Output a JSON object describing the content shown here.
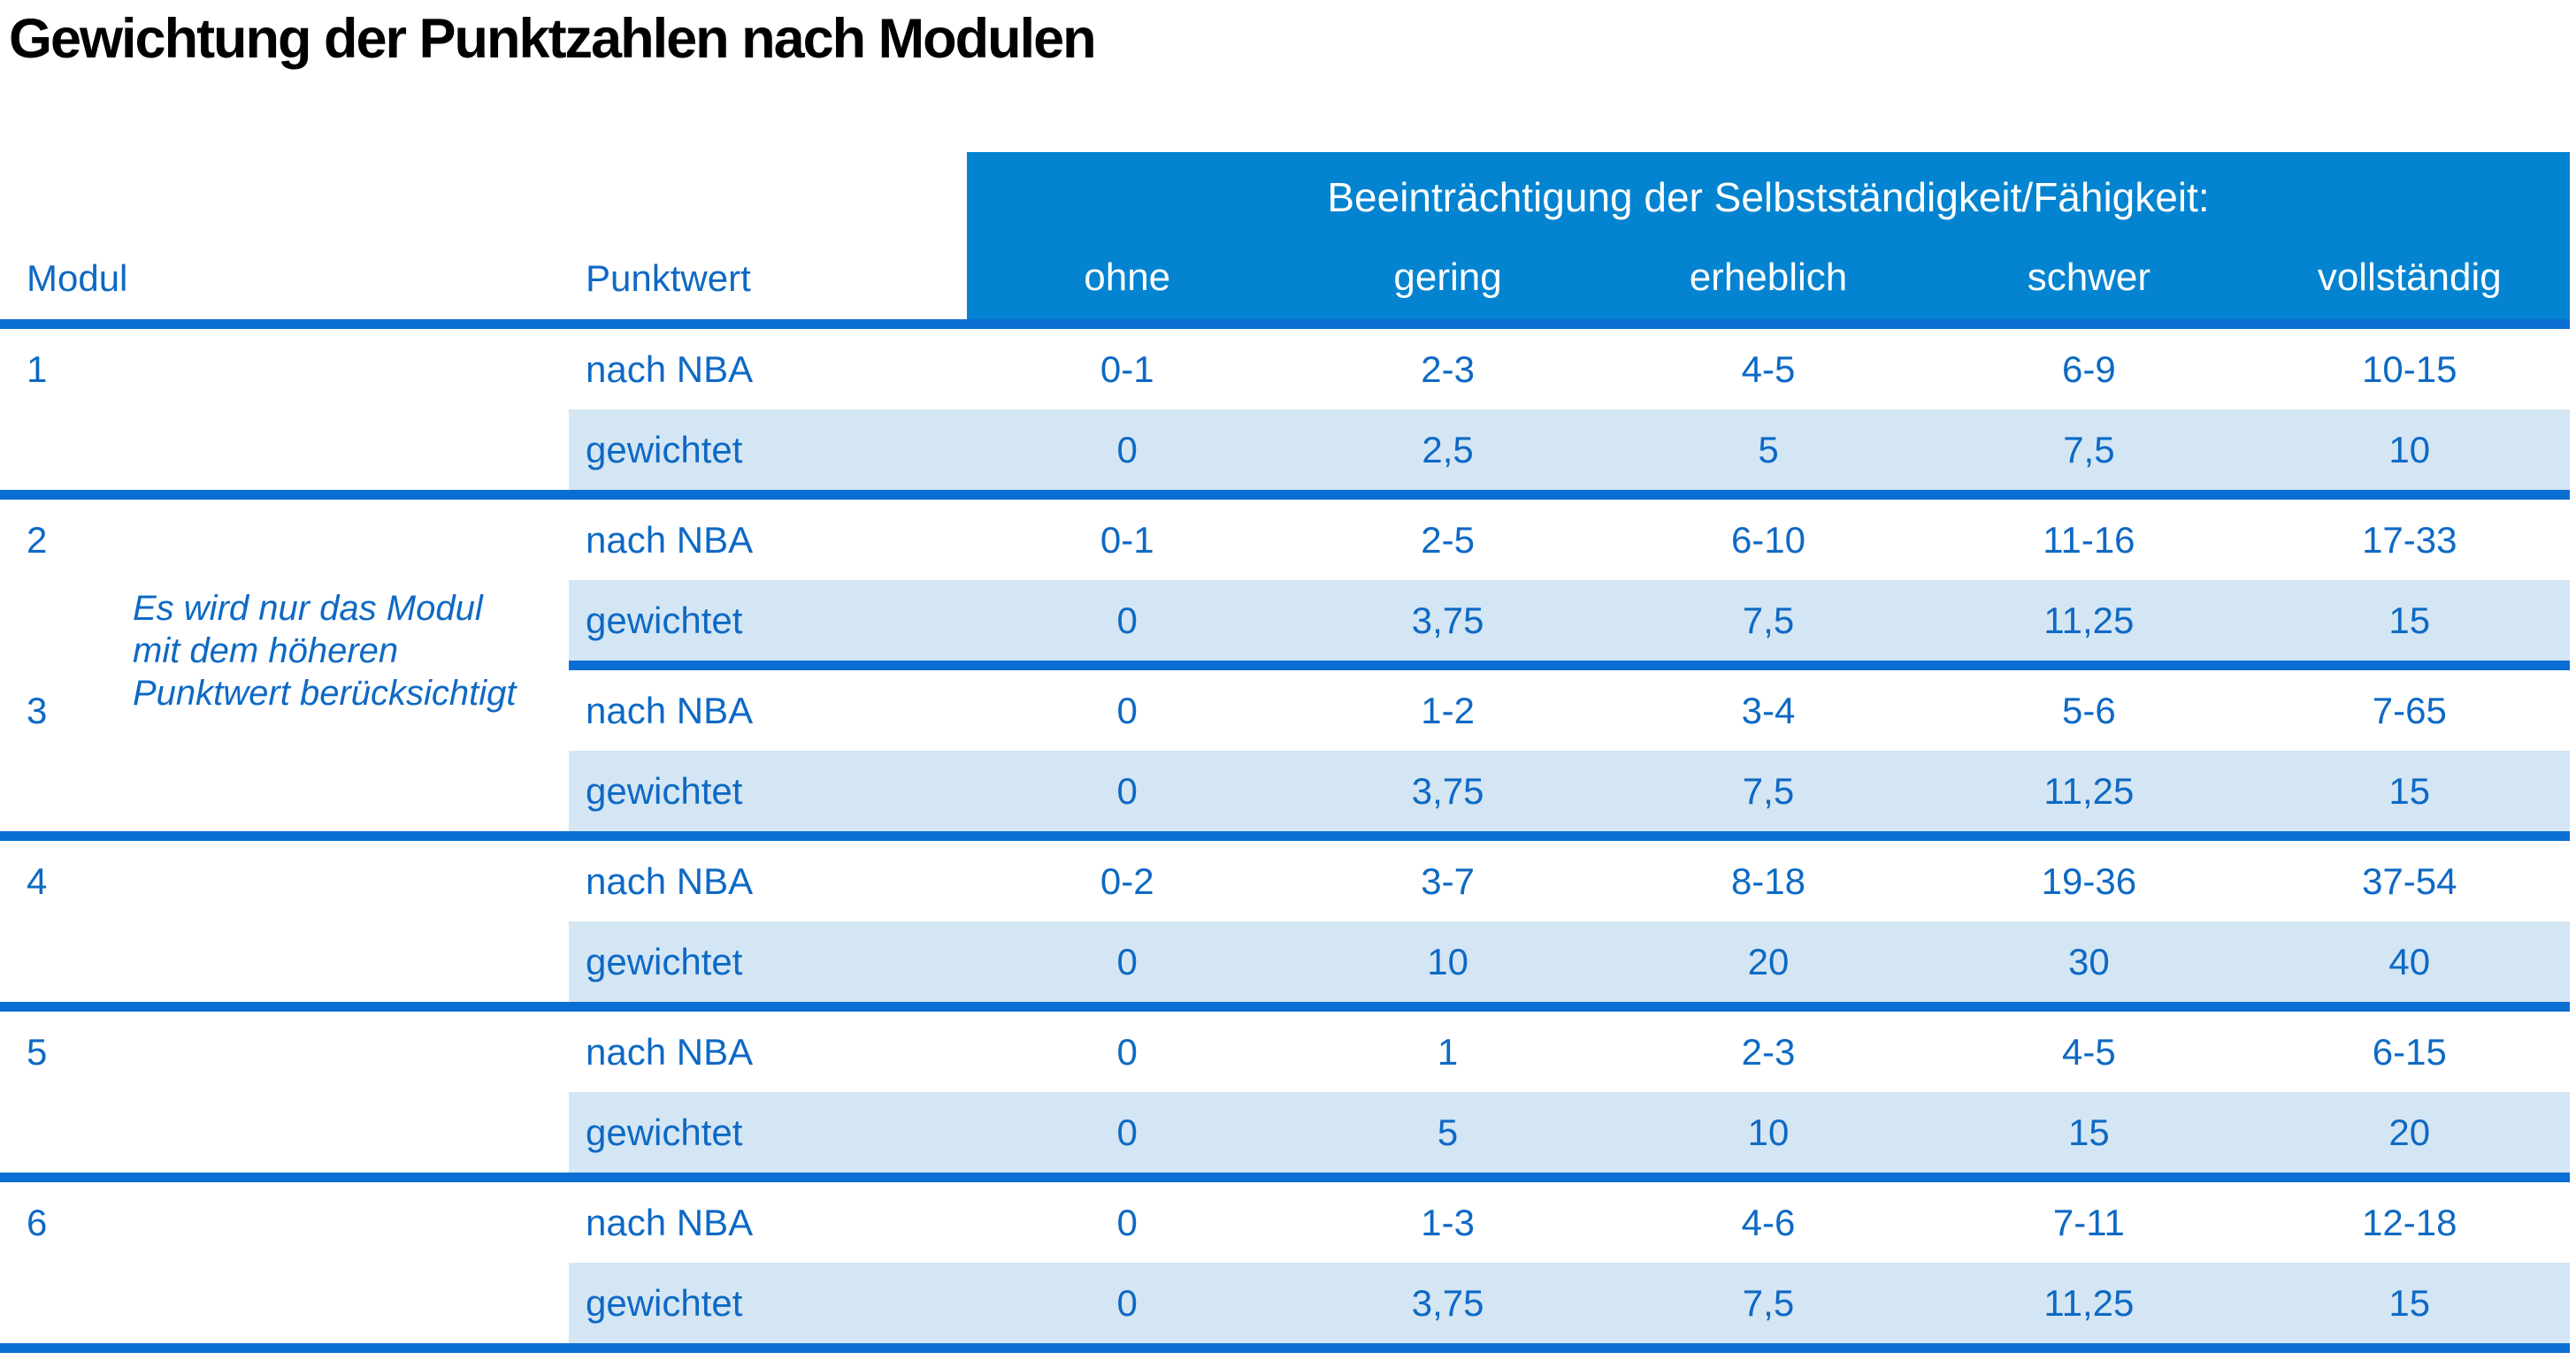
{
  "title": "Gewichtung der Punktzahlen nach Modulen",
  "table": {
    "col_headers": {
      "modul": "Modul",
      "punktwert": "Punktwert"
    },
    "impairment_header": "Beeinträchtigung der Selbstständigkeit/Fähigkeit:",
    "severity_levels": [
      "ohne",
      "gering",
      "erheblich",
      "schwer",
      "vollständig"
    ],
    "row_labels": {
      "nba": "nach NBA",
      "weighted": "gewichtet"
    },
    "note": {
      "lines": [
        "Es wird nur das Modul",
        "mit dem höheren",
        "Punktwert berücksichtigt"
      ]
    },
    "modules": [
      {
        "id": "1",
        "nba": [
          "0-1",
          "2-3",
          "4-5",
          "6-9",
          "10-15"
        ],
        "weighted": [
          "0",
          "2,5",
          "5",
          "7,5",
          "10"
        ]
      },
      {
        "id": "2",
        "nba": [
          "0-1",
          "2-5",
          "6-10",
          "11-16",
          "17-33"
        ],
        "weighted": [
          "0",
          "3,75",
          "7,5",
          "11,25",
          "15"
        ]
      },
      {
        "id": "3",
        "nba": [
          "0",
          "1-2",
          "3-4",
          "5-6",
          "7-65"
        ],
        "weighted": [
          "0",
          "3,75",
          "7,5",
          "11,25",
          "15"
        ]
      },
      {
        "id": "4",
        "nba": [
          "0-2",
          "3-7",
          "8-18",
          "19-36",
          "37-54"
        ],
        "weighted": [
          "0",
          "10",
          "20",
          "30",
          "40"
        ]
      },
      {
        "id": "5",
        "nba": [
          "0",
          "1",
          "2-3",
          "4-5",
          "6-15"
        ],
        "weighted": [
          "0",
          "5",
          "10",
          "15",
          "20"
        ]
      },
      {
        "id": "6",
        "nba": [
          "0",
          "1-3",
          "4-6",
          "7-11",
          "12-18"
        ],
        "weighted": [
          "0",
          "3,75",
          "7,5",
          "11,25",
          "15"
        ]
      }
    ],
    "colors": {
      "header_bar": "#0484d0",
      "separator_line": "#0b6ed3",
      "text_blue": "#0e69c4",
      "weighted_row_background": "#d4e6f4",
      "title_text": "#000000",
      "header_text": "#ffffff"
    }
  }
}
